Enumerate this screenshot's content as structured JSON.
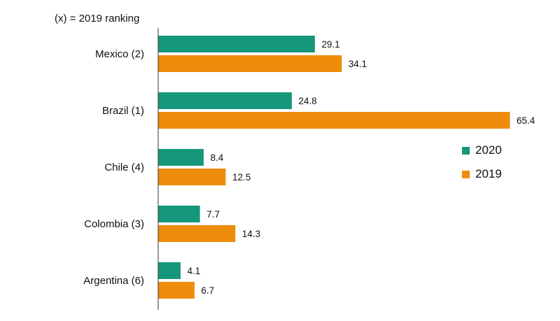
{
  "chart_data": {
    "type": "bar",
    "orientation": "horizontal",
    "note": "(x) = 2019 ranking",
    "categories": [
      "Mexico (2)",
      "Brazil (1)",
      "Chile (4)",
      "Colombia (3)",
      "Argentina (6)"
    ],
    "series": [
      {
        "name": "2020",
        "color": "#14977a",
        "values": [
          29.1,
          24.8,
          8.4,
          7.7,
          4.1
        ],
        "labels": [
          "29.1",
          "24.8",
          "8.4",
          "7.7",
          "4.1"
        ]
      },
      {
        "name": "2019",
        "color": "#ee8c0c",
        "values": [
          34.1,
          65.4,
          12.5,
          14.3,
          6.7
        ],
        "labels": [
          "34.1",
          "65.4",
          "12.5",
          "14.3",
          "6.7"
        ]
      }
    ],
    "xlim": [
      0,
      65.4
    ],
    "legend_position": "right",
    "grid": false
  }
}
